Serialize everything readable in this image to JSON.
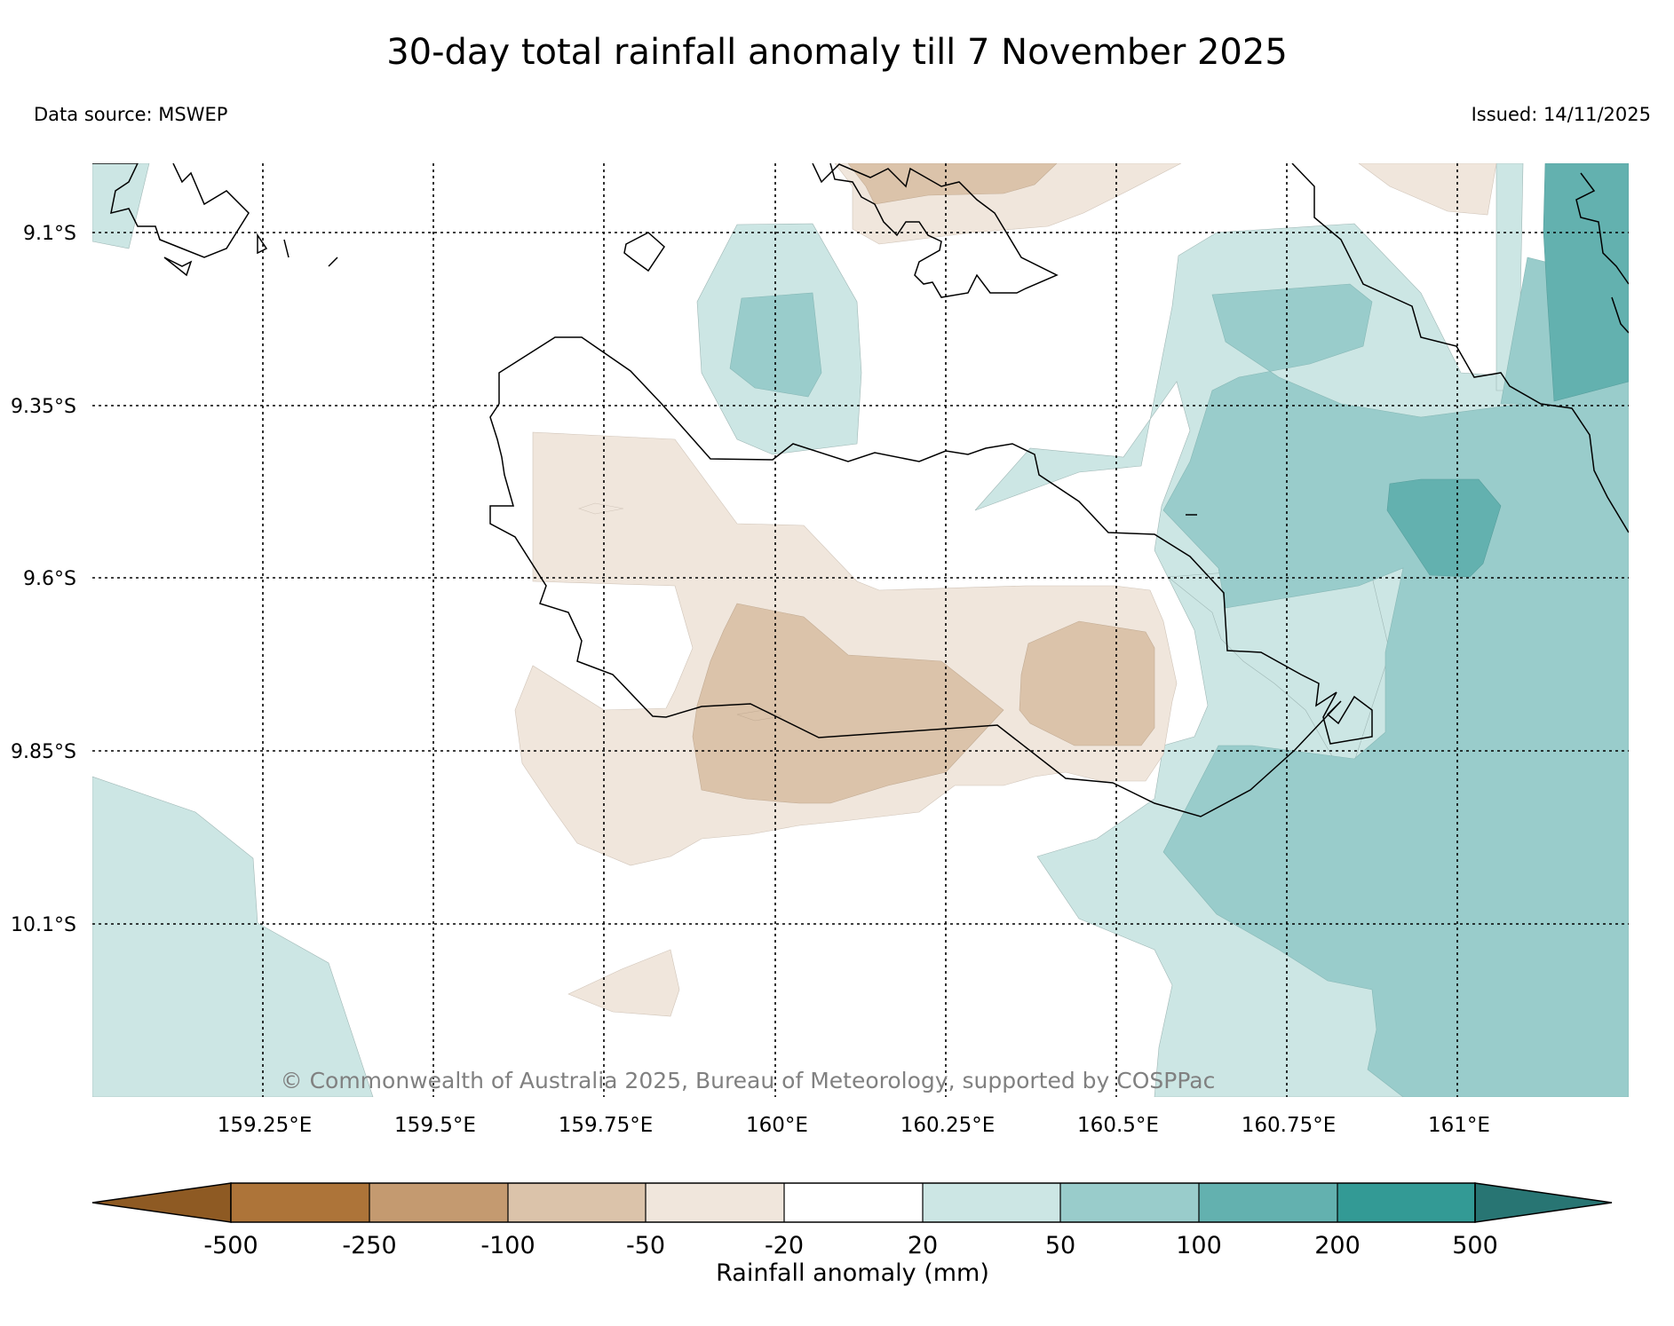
{
  "title": "30-day total rainfall anomaly till 7 November 2025",
  "data_source": "Data source: MSWEP",
  "issued": "Issued: 14/11/2025",
  "copyright": "© Commonwealth of Australia 2025, Bureau of Meteorology, supported by COSPPac",
  "lat_labels": [
    "9.1°S",
    "9.35°S",
    "9.6°S",
    "9.85°S",
    "10.1°S"
  ],
  "lon_labels": [
    "159.25°E",
    "159.5°E",
    "159.75°E",
    "160°E",
    "160.25°E",
    "160.5°E",
    "160.75°E",
    "161°E"
  ],
  "colorbar": {
    "label": "Rainfall anomaly (mm)",
    "ticks": [
      "-500",
      "-250",
      "-100",
      "-50",
      "-20",
      "20",
      "50",
      "100",
      "200",
      "500"
    ],
    "colors": [
      "#8e5a23",
      "#ad7439",
      "#c49a70",
      "#dbc3aa",
      "#f0e6dc",
      "#ffffff",
      "#cce6e4",
      "#99cccb",
      "#63b1af",
      "#339a95",
      "#287573"
    ]
  }
}
